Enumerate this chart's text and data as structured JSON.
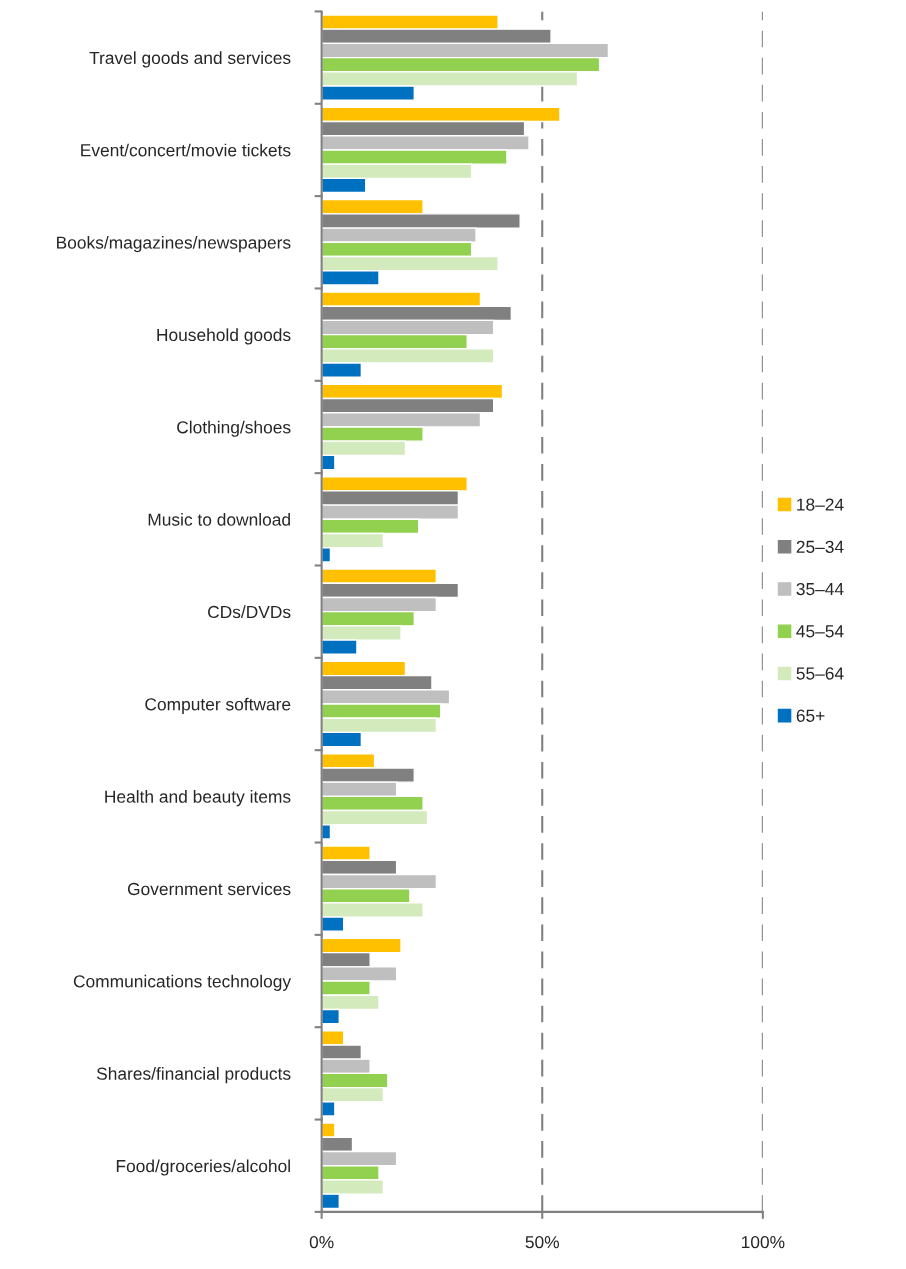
{
  "chart_data": {
    "type": "bar",
    "orientation": "horizontal",
    "categories": [
      "Travel goods and services",
      "Event/concert/movie tickets",
      "Books/magazines/newspapers",
      "Household goods",
      "Clothing/shoes",
      "Music to download",
      "CDs/DVDs",
      "Computer software",
      "Health and beauty items",
      "Government services",
      "Communications technology",
      "Shares/financial products",
      "Food/groceries/alcohol"
    ],
    "series": [
      {
        "name": "18–24",
        "color": "#ffc000",
        "values": [
          40,
          54,
          23,
          36,
          41,
          33,
          26,
          19,
          12,
          11,
          18,
          5,
          3
        ]
      },
      {
        "name": "25–34",
        "color": "#808080",
        "values": [
          52,
          46,
          45,
          43,
          39,
          31,
          31,
          25,
          21,
          17,
          11,
          9,
          7
        ]
      },
      {
        "name": "35–44",
        "color": "#bfbfbf",
        "values": [
          65,
          47,
          35,
          39,
          36,
          31,
          26,
          29,
          17,
          26,
          17,
          11,
          17
        ]
      },
      {
        "name": "45–54",
        "color": "#92d050",
        "values": [
          63,
          42,
          34,
          33,
          23,
          22,
          21,
          27,
          23,
          20,
          11,
          15,
          13
        ]
      },
      {
        "name": "55–64",
        "color": "#d3eabd",
        "values": [
          58,
          34,
          40,
          39,
          19,
          14,
          18,
          26,
          24,
          23,
          13,
          14,
          14
        ]
      },
      {
        "name": "65+",
        "color": "#0070c0",
        "values": [
          21,
          10,
          13,
          9,
          3,
          2,
          8,
          9,
          2,
          5,
          4,
          3,
          4
        ]
      }
    ],
    "xlim": [
      0,
      100
    ],
    "xticks": [
      {
        "value": 0,
        "label": "0%"
      },
      {
        "value": 50,
        "label": "50%"
      },
      {
        "value": 100,
        "label": "100%"
      }
    ],
    "grid": "x",
    "legend": "right"
  }
}
